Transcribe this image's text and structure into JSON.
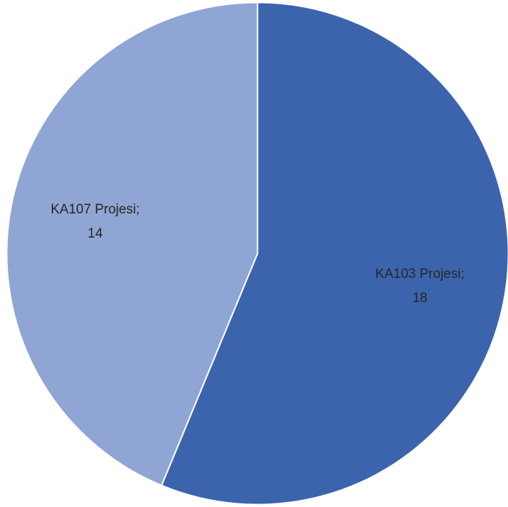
{
  "chart_data": {
    "type": "pie",
    "title": "",
    "start_angle_deg": 0,
    "direction": "clockwise",
    "slices": [
      {
        "label": "KA103 Projesi",
        "value": 18,
        "color": "#3c64ad",
        "data_label": "KA103 Projesi;",
        "value_text": "18"
      },
      {
        "label": "KA107 Projesi",
        "value": 14,
        "color": "#8fa5d3",
        "data_label": "KA107 Projesi;",
        "value_text": "14"
      }
    ],
    "slice_border_color": "#ffffff",
    "legend": "none"
  }
}
